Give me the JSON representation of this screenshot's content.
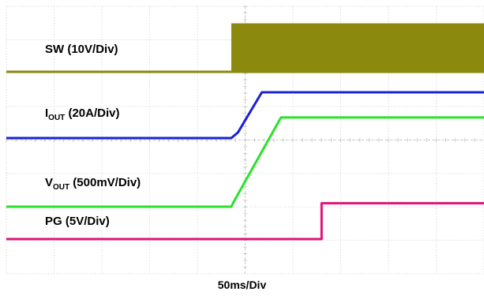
{
  "chart_data": {
    "type": "line",
    "title": "",
    "xlabel": "",
    "ylabel": "",
    "time_scale": "50ms/Div",
    "x_divisions": 10,
    "y_divisions": 8,
    "grid": true,
    "channels": [
      {
        "name": "SW",
        "label_main": "SW",
        "label_sub": "",
        "label_scale": " (10V/Div)",
        "color": "#8c8a0e",
        "style": "switching",
        "x": [
          0,
          4.71,
          10
        ],
        "y": [
          0,
          0,
          0
        ],
        "switch_high": 1.45
      },
      {
        "name": "IOUT",
        "label_main": "I",
        "label_sub": "OUT",
        "label_scale": " (20A/Div)",
        "color": "#1b22d6",
        "style": "line",
        "x": [
          0,
          4.71,
          4.85,
          5.35,
          10
        ],
        "y": [
          0,
          0,
          0.17,
          1.37,
          1.37
        ]
      },
      {
        "name": "VOUT",
        "label_main": "V",
        "label_sub": "OUT",
        "label_scale": " (500mV/Div)",
        "color": "#2ae22a",
        "style": "line",
        "x": [
          0,
          4.71,
          4.77,
          5.75,
          10
        ],
        "y": [
          0,
          0,
          0.17,
          2.67,
          2.67
        ]
      },
      {
        "name": "PG",
        "label_main": "PG",
        "label_sub": "",
        "label_scale": " (5V/Div)",
        "color": "#e0157a",
        "style": "line",
        "x": [
          0,
          6.6,
          6.6,
          10
        ],
        "y": [
          0,
          0,
          1.07,
          1.07
        ]
      }
    ]
  }
}
